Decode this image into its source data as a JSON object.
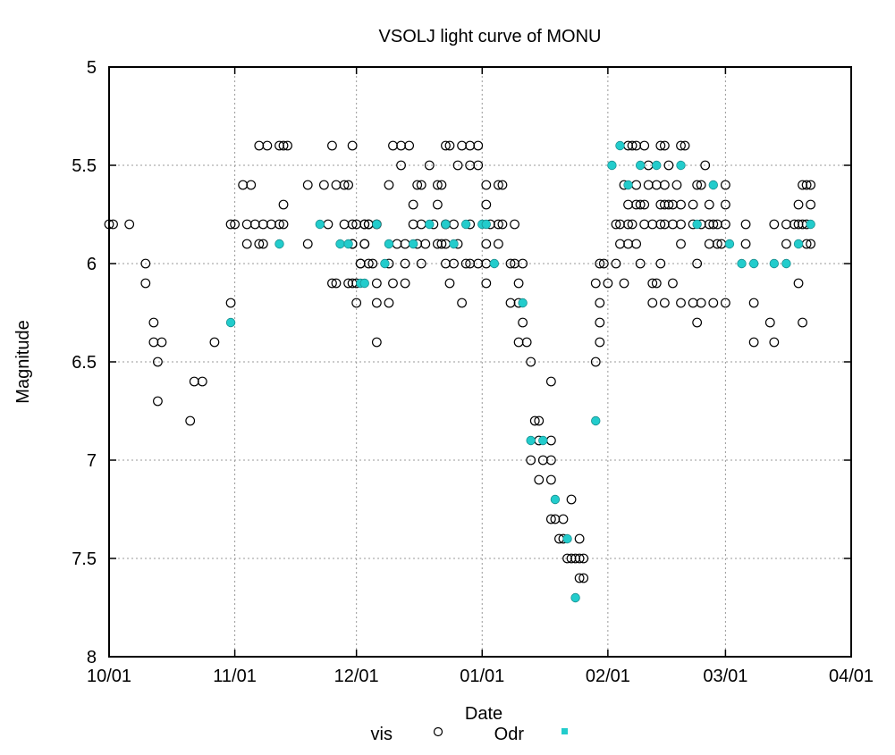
{
  "chart_data": {
    "type": "scatter",
    "title": "VSOLJ light curve of MONU",
    "xlabel": "Date",
    "ylabel": "Magnitude",
    "xlim": [
      0,
      183
    ],
    "ylim": [
      5,
      8
    ],
    "y_inverted": true,
    "grid": true,
    "x_unit": "days since 10/01",
    "x_ticks": [
      {
        "value": 0,
        "label": "10/01"
      },
      {
        "value": 31,
        "label": "11/01"
      },
      {
        "value": 61,
        "label": "12/01"
      },
      {
        "value": 92,
        "label": "01/01"
      },
      {
        "value": 123,
        "label": "02/01"
      },
      {
        "value": 152,
        "label": "03/01"
      },
      {
        "value": 183,
        "label": "04/01"
      }
    ],
    "y_ticks": [
      {
        "value": 5,
        "label": "5"
      },
      {
        "value": 5.5,
        "label": "5.5"
      },
      {
        "value": 6,
        "label": "6"
      },
      {
        "value": 6.5,
        "label": "6.5"
      },
      {
        "value": 7,
        "label": "7"
      },
      {
        "value": 7.5,
        "label": "7.5"
      },
      {
        "value": 8,
        "label": "8"
      }
    ],
    "legend_position": "bottom",
    "series": [
      {
        "name": "vis",
        "marker": "open-circle",
        "color": "#000000",
        "points": [
          [
            0,
            5.8
          ],
          [
            1,
            5.8
          ],
          [
            5,
            5.8
          ],
          [
            9,
            6.0
          ],
          [
            9,
            6.1
          ],
          [
            11,
            6.3
          ],
          [
            11,
            6.4
          ],
          [
            13,
            6.4
          ],
          [
            12,
            6.5
          ],
          [
            12,
            6.7
          ],
          [
            21,
            6.6
          ],
          [
            23,
            6.6
          ],
          [
            20,
            6.8
          ],
          [
            26,
            6.4
          ],
          [
            30,
            6.2
          ],
          [
            37,
            5.4
          ],
          [
            39,
            5.4
          ],
          [
            42,
            5.4
          ],
          [
            43,
            5.4
          ],
          [
            44,
            5.4
          ],
          [
            55,
            5.4
          ],
          [
            60,
            5.4
          ],
          [
            33,
            5.6
          ],
          [
            35,
            5.6
          ],
          [
            49,
            5.6
          ],
          [
            53,
            5.6
          ],
          [
            56,
            5.6
          ],
          [
            58,
            5.6
          ],
          [
            59,
            5.6
          ],
          [
            43,
            5.7
          ],
          [
            30,
            5.8
          ],
          [
            31,
            5.8
          ],
          [
            34,
            5.8
          ],
          [
            36,
            5.8
          ],
          [
            38,
            5.8
          ],
          [
            40,
            5.8
          ],
          [
            42,
            5.8
          ],
          [
            43,
            5.8
          ],
          [
            54,
            5.8
          ],
          [
            58,
            5.8
          ],
          [
            60,
            5.8
          ],
          [
            63,
            5.8
          ],
          [
            64,
            5.8
          ],
          [
            34,
            5.9
          ],
          [
            37,
            5.9
          ],
          [
            38,
            5.9
          ],
          [
            49,
            5.9
          ],
          [
            60,
            5.9
          ],
          [
            63,
            5.9
          ],
          [
            62,
            6.0
          ],
          [
            64,
            6.0
          ],
          [
            55,
            6.1
          ],
          [
            56,
            6.1
          ],
          [
            59,
            6.1
          ],
          [
            60,
            6.1
          ],
          [
            61,
            6.2
          ],
          [
            70,
            5.4
          ],
          [
            72,
            5.4
          ],
          [
            74,
            5.4
          ],
          [
            83,
            5.4
          ],
          [
            84,
            5.4
          ],
          [
            87,
            5.4
          ],
          [
            89,
            5.4
          ],
          [
            91,
            5.4
          ],
          [
            72,
            5.5
          ],
          [
            79,
            5.5
          ],
          [
            86,
            5.5
          ],
          [
            89,
            5.5
          ],
          [
            91,
            5.5
          ],
          [
            69,
            5.6
          ],
          [
            76,
            5.6
          ],
          [
            77,
            5.6
          ],
          [
            81,
            5.6
          ],
          [
            82,
            5.6
          ],
          [
            93,
            5.6
          ],
          [
            96,
            5.6
          ],
          [
            97,
            5.6
          ],
          [
            75,
            5.7
          ],
          [
            81,
            5.7
          ],
          [
            93,
            5.7
          ],
          [
            61,
            5.8
          ],
          [
            63,
            5.8
          ],
          [
            64,
            5.8
          ],
          [
            66,
            5.8
          ],
          [
            75,
            5.8
          ],
          [
            77,
            5.8
          ],
          [
            80,
            5.8
          ],
          [
            83,
            5.8
          ],
          [
            85,
            5.8
          ],
          [
            89,
            5.8
          ],
          [
            94,
            5.8
          ],
          [
            96,
            5.8
          ],
          [
            97,
            5.8
          ],
          [
            100,
            5.8
          ],
          [
            60,
            5.9
          ],
          [
            63,
            5.9
          ],
          [
            71,
            5.9
          ],
          [
            73,
            5.9
          ],
          [
            76,
            5.9
          ],
          [
            78,
            5.9
          ],
          [
            81,
            5.9
          ],
          [
            82,
            5.9
          ],
          [
            83,
            5.9
          ],
          [
            86,
            5.9
          ],
          [
            93,
            5.9
          ],
          [
            96,
            5.9
          ],
          [
            62,
            6.0
          ],
          [
            65,
            6.0
          ],
          [
            69,
            6.0
          ],
          [
            73,
            6.0
          ],
          [
            77,
            6.0
          ],
          [
            83,
            6.0
          ],
          [
            85,
            6.0
          ],
          [
            88,
            6.0
          ],
          [
            89,
            6.0
          ],
          [
            91,
            6.0
          ],
          [
            93,
            6.0
          ],
          [
            99,
            6.0
          ],
          [
            100,
            6.0
          ],
          [
            102,
            6.0
          ],
          [
            121,
            6.0
          ],
          [
            122,
            6.0
          ],
          [
            61,
            6.1
          ],
          [
            66,
            6.1
          ],
          [
            70,
            6.1
          ],
          [
            73,
            6.1
          ],
          [
            84,
            6.1
          ],
          [
            93,
            6.1
          ],
          [
            101,
            6.1
          ],
          [
            120,
            6.1
          ],
          [
            123,
            6.1
          ],
          [
            66,
            6.2
          ],
          [
            69,
            6.2
          ],
          [
            87,
            6.2
          ],
          [
            99,
            6.2
          ],
          [
            101,
            6.2
          ],
          [
            121,
            6.2
          ],
          [
            102,
            6.3
          ],
          [
            121,
            6.3
          ],
          [
            66,
            6.4
          ],
          [
            101,
            6.4
          ],
          [
            103,
            6.4
          ],
          [
            121,
            6.4
          ],
          [
            104,
            6.5
          ],
          [
            120,
            6.5
          ],
          [
            109,
            6.6
          ],
          [
            105,
            6.8
          ],
          [
            106,
            6.8
          ],
          [
            106,
            6.9
          ],
          [
            109,
            6.9
          ],
          [
            104,
            7.0
          ],
          [
            107,
            7.0
          ],
          [
            109,
            7.0
          ],
          [
            106,
            7.1
          ],
          [
            109,
            7.1
          ],
          [
            114,
            7.2
          ],
          [
            109,
            7.3
          ],
          [
            110,
            7.3
          ],
          [
            112,
            7.3
          ],
          [
            111,
            7.4
          ],
          [
            112,
            7.4
          ],
          [
            116,
            7.4
          ],
          [
            113,
            7.5
          ],
          [
            114,
            7.5
          ],
          [
            115,
            7.5
          ],
          [
            116,
            7.5
          ],
          [
            117,
            7.5
          ],
          [
            116,
            7.6
          ],
          [
            117,
            7.6
          ],
          [
            128,
            5.4
          ],
          [
            129,
            5.4
          ],
          [
            130,
            5.4
          ],
          [
            132,
            5.4
          ],
          [
            136,
            5.4
          ],
          [
            137,
            5.4
          ],
          [
            141,
            5.4
          ],
          [
            142,
            5.4
          ],
          [
            133,
            5.5
          ],
          [
            138,
            5.5
          ],
          [
            147,
            5.5
          ],
          [
            127,
            5.6
          ],
          [
            130,
            5.6
          ],
          [
            133,
            5.6
          ],
          [
            135,
            5.6
          ],
          [
            137,
            5.6
          ],
          [
            140,
            5.6
          ],
          [
            145,
            5.6
          ],
          [
            146,
            5.6
          ],
          [
            152,
            5.6
          ],
          [
            171,
            5.6
          ],
          [
            172,
            5.6
          ],
          [
            173,
            5.6
          ],
          [
            128,
            5.7
          ],
          [
            130,
            5.7
          ],
          [
            131,
            5.7
          ],
          [
            132,
            5.7
          ],
          [
            136,
            5.7
          ],
          [
            137,
            5.7
          ],
          [
            138,
            5.7
          ],
          [
            139,
            5.7
          ],
          [
            141,
            5.7
          ],
          [
            144,
            5.7
          ],
          [
            148,
            5.7
          ],
          [
            152,
            5.7
          ],
          [
            170,
            5.7
          ],
          [
            173,
            5.7
          ],
          [
            125,
            5.8
          ],
          [
            126,
            5.8
          ],
          [
            128,
            5.8
          ],
          [
            129,
            5.8
          ],
          [
            132,
            5.8
          ],
          [
            134,
            5.8
          ],
          [
            136,
            5.8
          ],
          [
            137,
            5.8
          ],
          [
            139,
            5.8
          ],
          [
            141,
            5.8
          ],
          [
            144,
            5.8
          ],
          [
            146,
            5.8
          ],
          [
            148,
            5.8
          ],
          [
            149,
            5.8
          ],
          [
            150,
            5.8
          ],
          [
            152,
            5.8
          ],
          [
            157,
            5.8
          ],
          [
            164,
            5.8
          ],
          [
            167,
            5.8
          ],
          [
            169,
            5.8
          ],
          [
            170,
            5.8
          ],
          [
            171,
            5.8
          ],
          [
            172,
            5.8
          ],
          [
            126,
            5.9
          ],
          [
            128,
            5.9
          ],
          [
            130,
            5.9
          ],
          [
            141,
            5.9
          ],
          [
            148,
            5.9
          ],
          [
            150,
            5.9
          ],
          [
            151,
            5.9
          ],
          [
            157,
            5.9
          ],
          [
            167,
            5.9
          ],
          [
            172,
            5.9
          ],
          [
            173,
            5.9
          ],
          [
            125,
            6.0
          ],
          [
            131,
            6.0
          ],
          [
            136,
            6.0
          ],
          [
            145,
            6.0
          ],
          [
            127,
            6.1
          ],
          [
            134,
            6.1
          ],
          [
            135,
            6.1
          ],
          [
            139,
            6.1
          ],
          [
            170,
            6.1
          ],
          [
            134,
            6.2
          ],
          [
            137,
            6.2
          ],
          [
            141,
            6.2
          ],
          [
            144,
            6.2
          ],
          [
            146,
            6.2
          ],
          [
            149,
            6.2
          ],
          [
            152,
            6.2
          ],
          [
            159,
            6.2
          ],
          [
            145,
            6.3
          ],
          [
            163,
            6.3
          ],
          [
            171,
            6.3
          ],
          [
            159,
            6.4
          ],
          [
            164,
            6.4
          ]
        ]
      },
      {
        "name": "Odr",
        "marker": "filled-circle",
        "color": "#22cccc",
        "points": [
          [
            30,
            6.3
          ],
          [
            42,
            5.9
          ],
          [
            52,
            5.8
          ],
          [
            57,
            5.9
          ],
          [
            59,
            5.9
          ],
          [
            62,
            6.1
          ],
          [
            63,
            6.1
          ],
          [
            66,
            5.8
          ],
          [
            68,
            6.0
          ],
          [
            69,
            5.9
          ],
          [
            75,
            5.9
          ],
          [
            79,
            5.8
          ],
          [
            83,
            5.8
          ],
          [
            85,
            5.9
          ],
          [
            88,
            5.8
          ],
          [
            92,
            5.8
          ],
          [
            93,
            5.8
          ],
          [
            95,
            6.0
          ],
          [
            102,
            6.2
          ],
          [
            104,
            6.9
          ],
          [
            107,
            6.9
          ],
          [
            110,
            7.2
          ],
          [
            113,
            7.4
          ],
          [
            115,
            7.7
          ],
          [
            120,
            6.8
          ],
          [
            124,
            5.5
          ],
          [
            126,
            5.4
          ],
          [
            128,
            5.6
          ],
          [
            131,
            5.5
          ],
          [
            135,
            5.5
          ],
          [
            141,
            5.5
          ],
          [
            145,
            5.8
          ],
          [
            149,
            5.6
          ],
          [
            153,
            5.9
          ],
          [
            156,
            6.0
          ],
          [
            159,
            6.0
          ],
          [
            164,
            6.0
          ],
          [
            167,
            6.0
          ],
          [
            170,
            5.9
          ],
          [
            173,
            5.8
          ]
        ]
      }
    ]
  }
}
